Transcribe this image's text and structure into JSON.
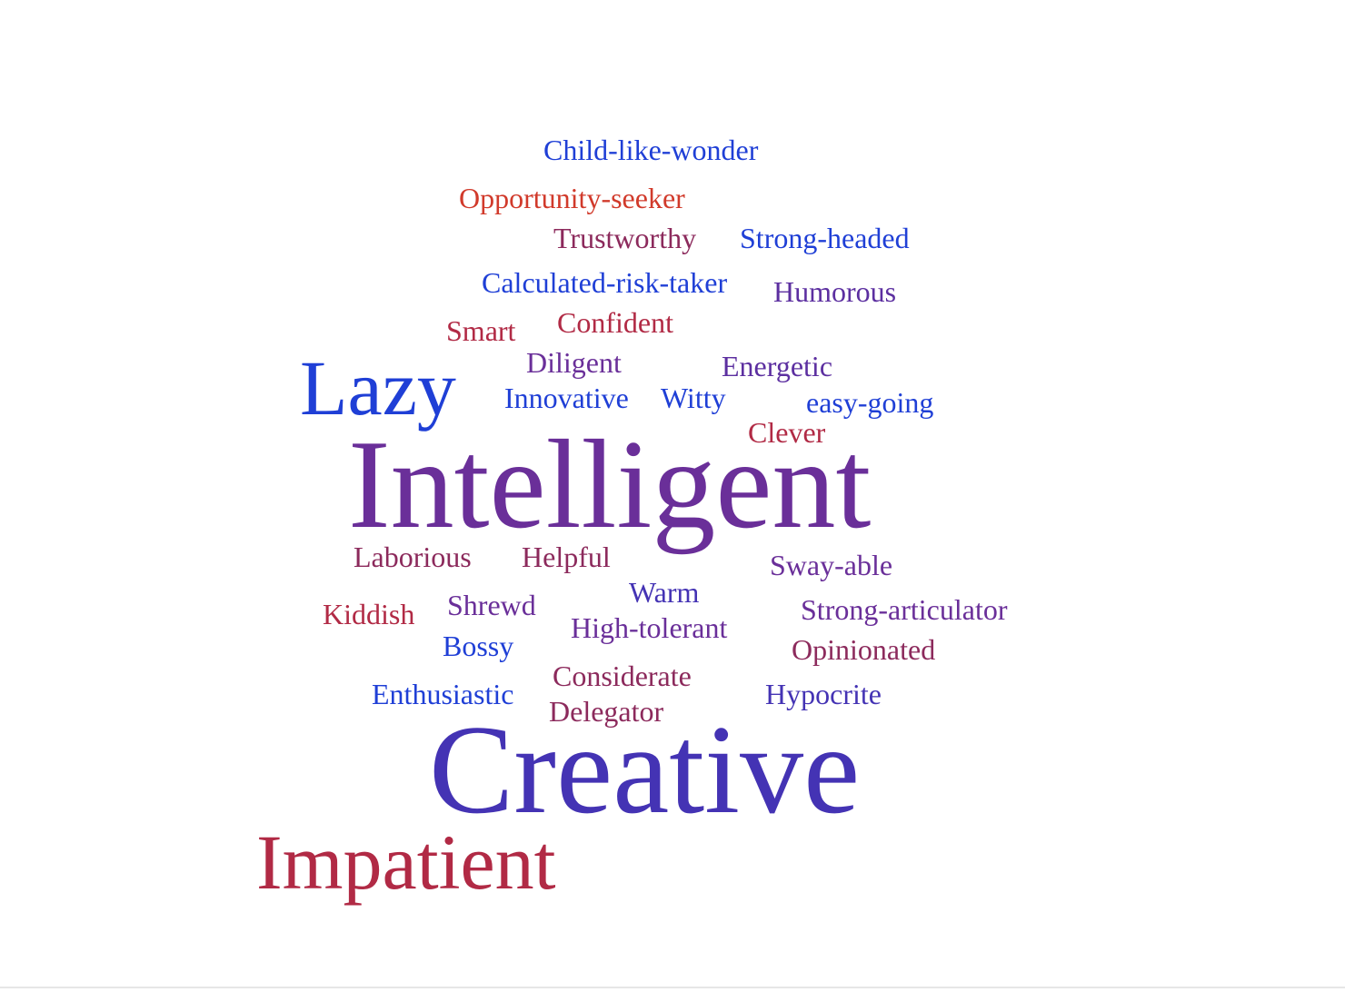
{
  "colors": {
    "blue": "#1f3fd6",
    "red": "#d13a2b",
    "crimson": "#b12a45",
    "maroon": "#8c2a5c",
    "purple": "#6a2f99",
    "indigo": "#4433b4",
    "violet": "#5c2fa0"
  },
  "words": {
    "child_like_wonder": "Child-like-wonder",
    "opportunity_seeker": "Opportunity-seeker",
    "trustworthy": "Trustworthy",
    "strong_headed": "Strong-headed",
    "calculated_risk_taker": "Calculated-risk-taker",
    "humorous": "Humorous",
    "smart": "Smart",
    "confident": "Confident",
    "diligent": "Diligent",
    "energetic": "Energetic",
    "lazy": "Lazy",
    "innovative": "Innovative",
    "witty": "Witty",
    "easy_going": "easy-going",
    "clever": "Clever",
    "intelligent": "Intelligent",
    "laborious": "Laborious",
    "helpful": "Helpful",
    "sway_able": "Sway-able",
    "warm": "Warm",
    "kiddish": "Kiddish",
    "shrewd": "Shrewd",
    "strong_articulator": "Strong-articulator",
    "high_tolerant": "High-tolerant",
    "bossy": "Bossy",
    "opinionated": "Opinionated",
    "considerate": "Considerate",
    "enthusiastic": "Enthusiastic",
    "hypocrite": "Hypocrite",
    "delegator": "Delegator",
    "creative": "Creative",
    "impatient": "Impatient"
  }
}
